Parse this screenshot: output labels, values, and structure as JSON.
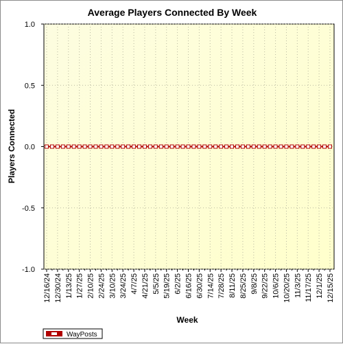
{
  "chart_data": {
    "type": "line",
    "title": "Average Players Connected By Week",
    "xlabel": "Week",
    "ylabel": "Players Connected",
    "ylim": [
      -1.0,
      1.0
    ],
    "y_ticks": [
      "1.0",
      "0.5",
      "0.0",
      "-0.5",
      "-1.0"
    ],
    "grid": true,
    "legend_position": "bottom-left",
    "x_tick_labels": [
      "12/16/24",
      "12/30/24",
      "1/13/25",
      "1/27/25",
      "2/10/25",
      "2/24/25",
      "3/10/25",
      "3/24/25",
      "4/7/25",
      "4/21/25",
      "5/5/25",
      "5/19/25",
      "6/2/25",
      "6/16/25",
      "6/30/25",
      "7/14/25",
      "7/28/25",
      "8/11/25",
      "8/25/25",
      "9/8/25",
      "9/22/25",
      "10/6/25",
      "10/20/25",
      "11/3/25",
      "11/17/25",
      "12/1/25",
      "12/15/25"
    ],
    "x": [
      "12/16/24",
      "12/23/24",
      "12/30/24",
      "1/6/25",
      "1/13/25",
      "1/20/25",
      "1/27/25",
      "2/3/25",
      "2/10/25",
      "2/17/25",
      "2/24/25",
      "3/3/25",
      "3/10/25",
      "3/17/25",
      "3/24/25",
      "3/31/25",
      "4/7/25",
      "4/14/25",
      "4/21/25",
      "4/28/25",
      "5/5/25",
      "5/12/25",
      "5/19/25",
      "5/26/25",
      "6/2/25",
      "6/9/25",
      "6/16/25",
      "6/23/25",
      "6/30/25",
      "7/7/25",
      "7/14/25",
      "7/21/25",
      "7/28/25",
      "8/4/25",
      "8/11/25",
      "8/18/25",
      "8/25/25",
      "9/1/25",
      "9/8/25",
      "9/15/25",
      "9/22/25",
      "9/29/25",
      "10/6/25",
      "10/13/25",
      "10/20/25",
      "10/27/25",
      "11/3/25",
      "11/10/25",
      "11/17/25",
      "11/24/25",
      "12/1/25",
      "12/8/25",
      "12/15/25"
    ],
    "series": [
      {
        "name": "WayPosts",
        "color": "#b00000",
        "values": [
          0,
          0,
          0,
          0,
          0,
          0,
          0,
          0,
          0,
          0,
          0,
          0,
          0,
          0,
          0,
          0,
          0,
          0,
          0,
          0,
          0,
          0,
          0,
          0,
          0,
          0,
          0,
          0,
          0,
          0,
          0,
          0,
          0,
          0,
          0,
          0,
          0,
          0,
          0,
          0,
          0,
          0,
          0,
          0,
          0,
          0,
          0,
          0,
          0,
          0,
          0,
          0,
          0
        ]
      }
    ],
    "colors": {
      "plot_top": "#fdfde0",
      "plot_bottom": "#ffffcc",
      "grid": "#b8b8a0"
    }
  }
}
